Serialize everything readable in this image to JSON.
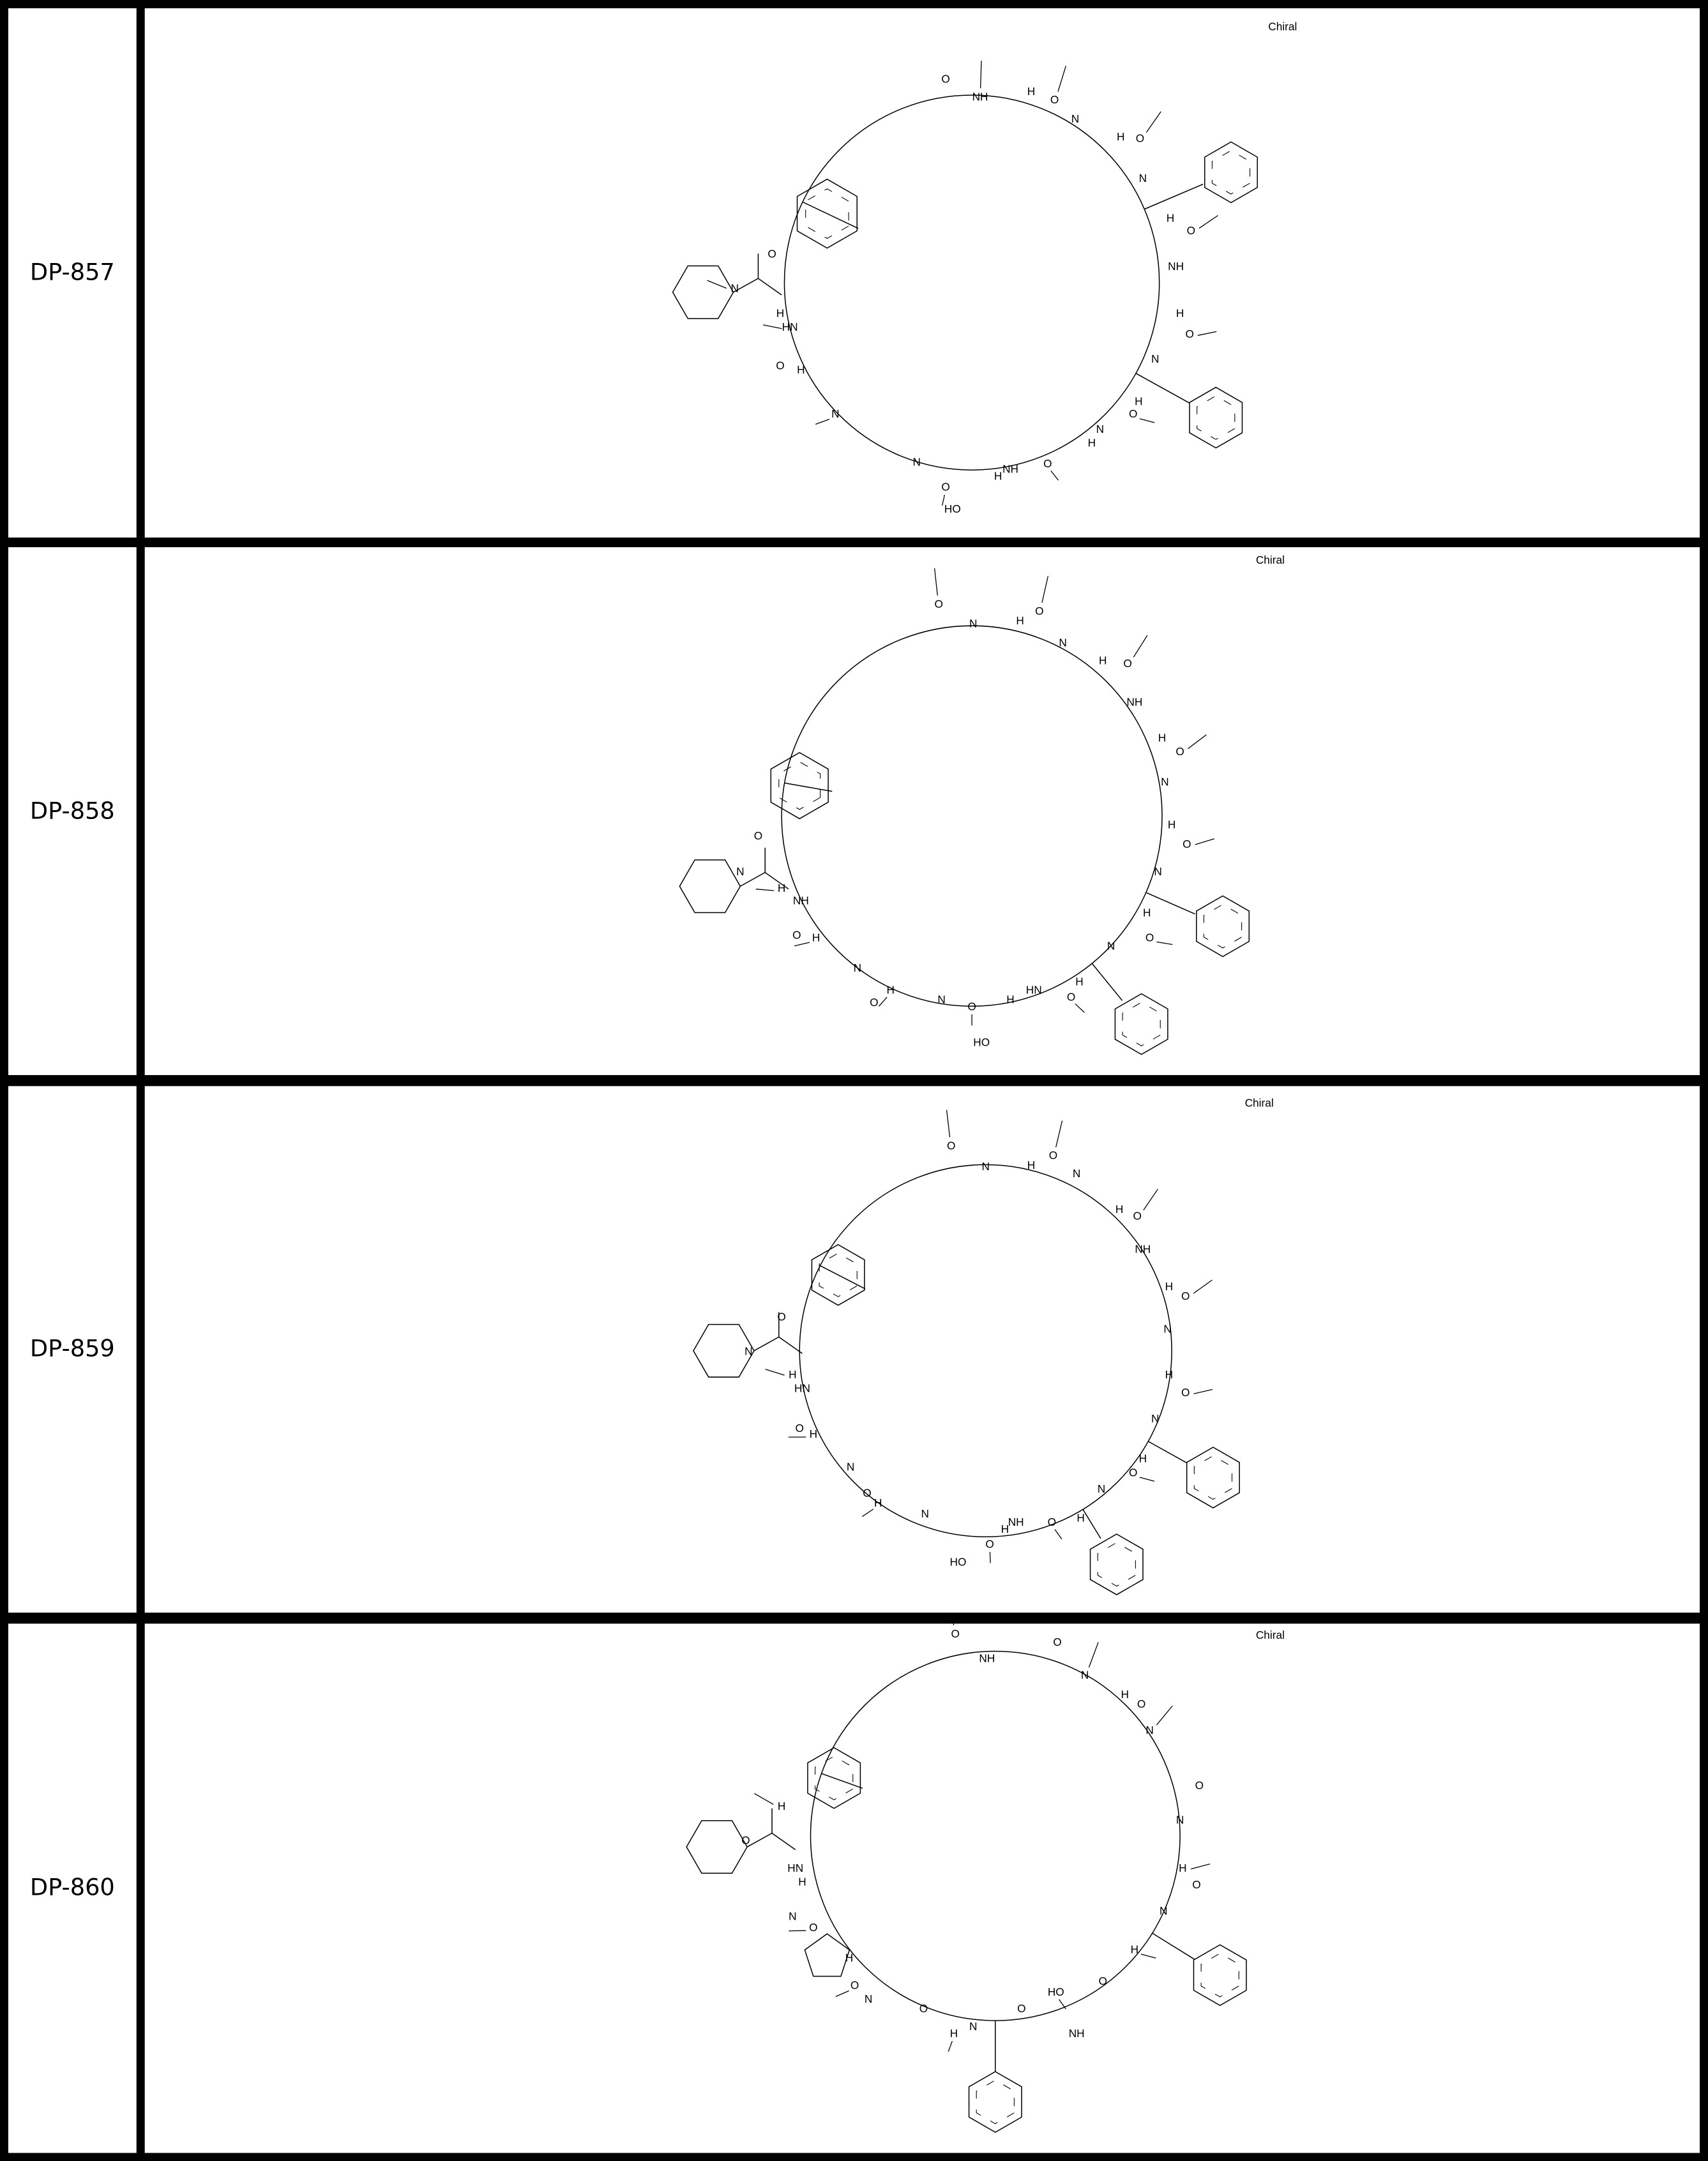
{
  "rows": [
    {
      "id": "DP-857",
      "chiral_label": "Chiral",
      "atom_labels": [
        "NH",
        "O",
        "H",
        "O",
        "N",
        "H",
        "O",
        "N",
        "H",
        "O",
        "NH",
        "H",
        "O",
        "N",
        "H",
        "O",
        "N",
        "H",
        "O",
        "NH",
        "H",
        "O",
        "N",
        "HO",
        "N",
        "O",
        "H",
        "HN",
        "H",
        "O",
        "N"
      ]
    },
    {
      "id": "DP-858",
      "chiral_label": "Chiral",
      "atom_labels": [
        "O",
        "N",
        "H",
        "O",
        "N",
        "H",
        "O",
        "NH",
        "H",
        "O",
        "N",
        "H",
        "O",
        "N",
        "H",
        "O",
        "N",
        "H",
        "O",
        "HN",
        "H",
        "O",
        "N",
        "HO",
        "H",
        "O",
        "N",
        "H",
        "O",
        "NH",
        "H",
        "O",
        "N"
      ]
    },
    {
      "id": "DP-859",
      "chiral_label": "Chiral",
      "atom_labels": [
        "O",
        "N",
        "H",
        "O",
        "N",
        "H",
        "O",
        "NH",
        "H",
        "O",
        "N",
        "H",
        "O",
        "N",
        "H",
        "O",
        "N",
        "H",
        "O",
        "NH",
        "H",
        "O",
        "N",
        "HO",
        "H",
        "O",
        "N",
        "H",
        "O",
        "HN",
        "H",
        "O",
        "N"
      ]
    },
    {
      "id": "DP-860",
      "chiral_label": "Chiral",
      "atom_labels": [
        "O",
        "NH",
        "O",
        "N",
        "H",
        "O",
        "N",
        "O",
        "N",
        "H",
        "O",
        "N",
        "H",
        "O",
        "NH",
        "HO",
        "O",
        "N",
        "H",
        "O",
        "N",
        "O",
        "H",
        "N",
        "O",
        "H",
        "HN",
        "H",
        "O",
        "N"
      ]
    }
  ]
}
